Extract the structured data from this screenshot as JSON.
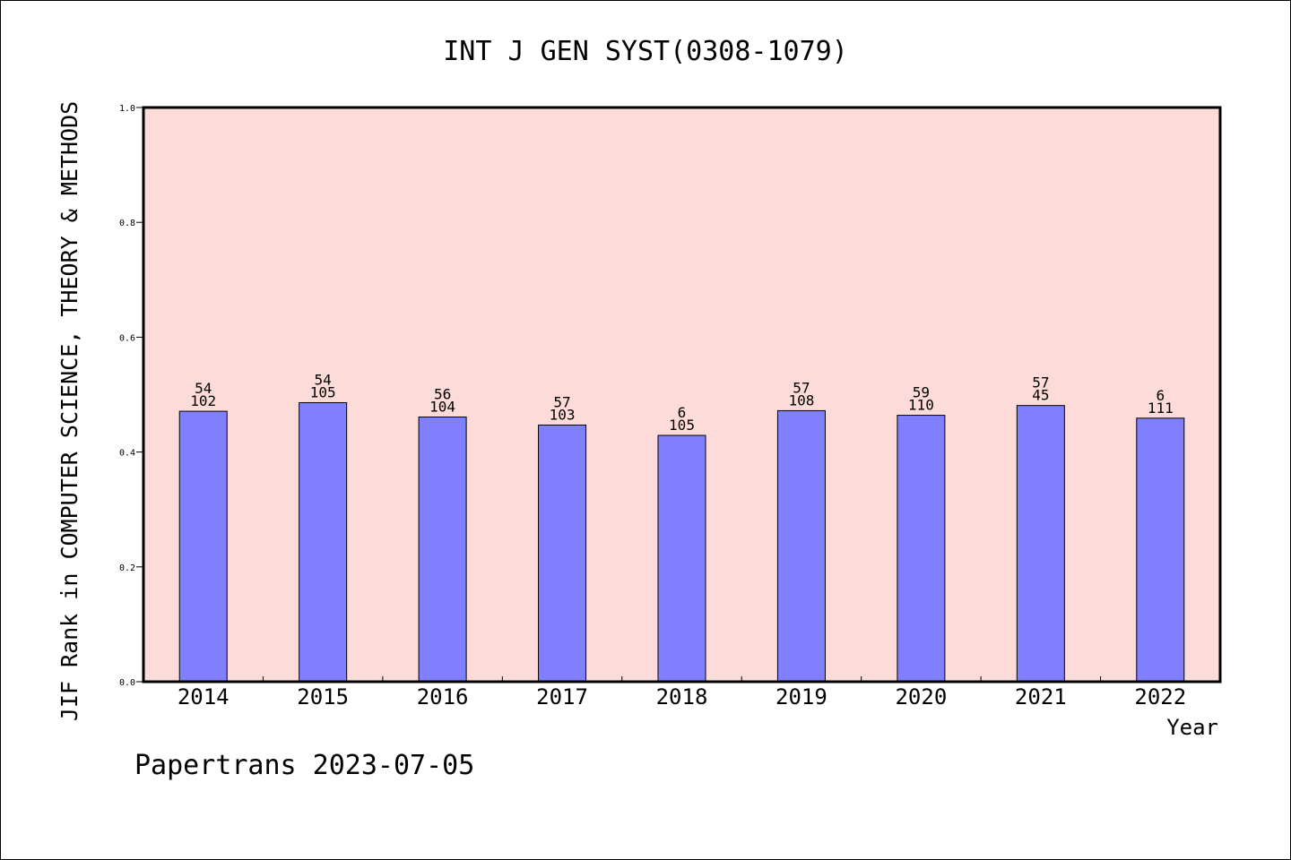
{
  "chart_data": {
    "type": "bar",
    "title": "INT J GEN SYST(0308-1079)",
    "xlabel": "Year",
    "ylabel": "JIF Rank in COMPUTER SCIENCE, THEORY & METHODS",
    "categories": [
      "2014",
      "2015",
      "2016",
      "2017",
      "2018",
      "2019",
      "2020",
      "2021",
      "2022"
    ],
    "values": [
      0.471,
      0.486,
      0.461,
      0.447,
      0.429,
      0.472,
      0.464,
      0.481,
      0.459
    ],
    "labels_top": [
      "54",
      "54",
      "56",
      "57",
      "6",
      "57",
      "59",
      "57",
      "6"
    ],
    "labels_bottom": [
      "102",
      "105",
      "104",
      "103",
      "105",
      "108",
      "110",
      "45",
      "111"
    ],
    "ylim": [
      0,
      1.0
    ],
    "yticks": [
      "0.0",
      "0.2",
      "0.4",
      "0.6",
      "0.8",
      "1.0"
    ],
    "bar_color": "#8080ff",
    "plot_background": "#fddbd8",
    "grid": false
  },
  "footer": "Papertrans 2023-07-05"
}
